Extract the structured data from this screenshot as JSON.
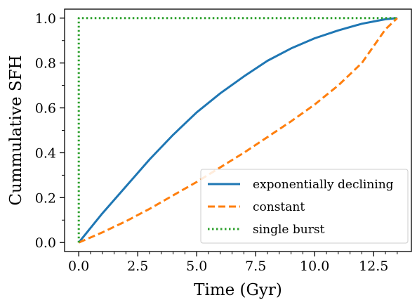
{
  "chart_data": {
    "type": "line",
    "xlabel": "Time (Gyr)",
    "ylabel": "Cummulative SFH",
    "xlim": [
      -0.6,
      14.1
    ],
    "ylim": [
      -0.04,
      1.04
    ],
    "xticks": [
      0.0,
      2.5,
      5.0,
      7.5,
      10.0,
      12.5
    ],
    "xtick_labels": [
      "0.0",
      "2.5",
      "5.0",
      "7.5",
      "10.0",
      "12.5"
    ],
    "yticks": [
      0.0,
      0.2,
      0.4,
      0.6,
      0.8,
      1.0
    ],
    "ytick_labels": [
      "0.0",
      "0.2",
      "0.4",
      "0.6",
      "0.8",
      "1.0"
    ],
    "grid": false,
    "legend_position": "lower-right",
    "series": [
      {
        "name": "exponentially declining",
        "color": "#1f77b4",
        "style": "solid",
        "x": [
          0,
          1,
          2,
          3,
          4,
          5,
          6,
          7,
          8,
          9,
          10,
          11,
          12,
          13,
          13.5
        ],
        "y": [
          0.0,
          0.13,
          0.25,
          0.37,
          0.48,
          0.58,
          0.665,
          0.74,
          0.81,
          0.865,
          0.91,
          0.945,
          0.975,
          0.995,
          1.0
        ]
      },
      {
        "name": "constant",
        "color": "#ff7f0e",
        "style": "dashed",
        "x": [
          0,
          1,
          2,
          3,
          4,
          5,
          6,
          7,
          8,
          9,
          10,
          11,
          12,
          13,
          13.5
        ],
        "y": [
          0.0,
          0.045,
          0.095,
          0.15,
          0.21,
          0.27,
          0.335,
          0.4,
          0.47,
          0.54,
          0.615,
          0.7,
          0.8,
          0.95,
          1.0
        ]
      },
      {
        "name": "single burst",
        "color": "#2ca02c",
        "style": "dotted",
        "x": [
          0,
          0,
          13.5
        ],
        "y": [
          0.0,
          1.0,
          1.0
        ]
      }
    ]
  }
}
